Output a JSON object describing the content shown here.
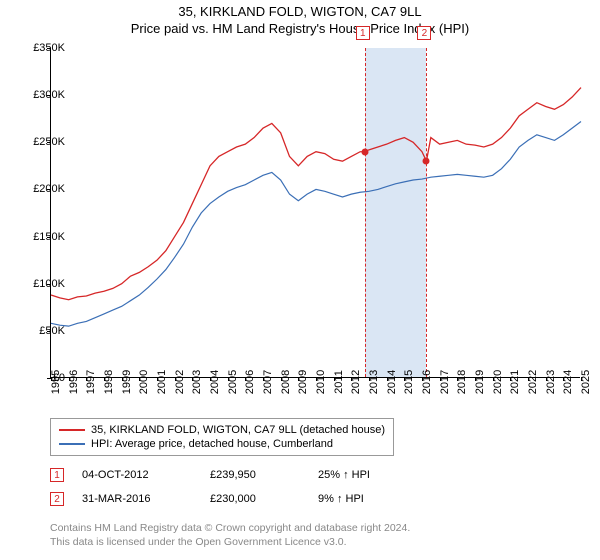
{
  "title": {
    "line1": "35, KIRKLAND FOLD, WIGTON, CA7 9LL",
    "line2": "Price paid vs. HM Land Registry's House Price Index (HPI)"
  },
  "chart": {
    "type": "line",
    "background_color": "#ffffff",
    "axis_color": "#000000",
    "ylim": [
      0,
      350000
    ],
    "ytick_step": 50000,
    "yticks": [
      "£0",
      "£50K",
      "£100K",
      "£150K",
      "£200K",
      "£250K",
      "£300K",
      "£350K"
    ],
    "xlim": [
      1995,
      2025
    ],
    "xticks": [
      1995,
      1996,
      1997,
      1998,
      1999,
      2000,
      2001,
      2002,
      2003,
      2004,
      2005,
      2006,
      2007,
      2008,
      2009,
      2010,
      2011,
      2012,
      2013,
      2014,
      2015,
      2016,
      2017,
      2018,
      2019,
      2020,
      2021,
      2022,
      2023,
      2024,
      2025
    ],
    "label_fontsize": 11,
    "shade_band": {
      "x_start": 2012.76,
      "x_end": 2016.25,
      "color": "rgba(173,200,230,0.45)"
    },
    "series": [
      {
        "name": "red",
        "color": "#d62728",
        "width": 1.3,
        "points": [
          [
            1995,
            88000
          ],
          [
            1995.5,
            85000
          ],
          [
            1996,
            83000
          ],
          [
            1996.5,
            86000
          ],
          [
            1997,
            87000
          ],
          [
            1997.5,
            90000
          ],
          [
            1998,
            92000
          ],
          [
            1998.5,
            95000
          ],
          [
            1999,
            100000
          ],
          [
            1999.5,
            108000
          ],
          [
            2000,
            112000
          ],
          [
            2000.5,
            118000
          ],
          [
            2001,
            125000
          ],
          [
            2001.5,
            135000
          ],
          [
            2002,
            150000
          ],
          [
            2002.5,
            165000
          ],
          [
            2003,
            185000
          ],
          [
            2003.5,
            205000
          ],
          [
            2004,
            225000
          ],
          [
            2004.5,
            235000
          ],
          [
            2005,
            240000
          ],
          [
            2005.5,
            245000
          ],
          [
            2006,
            248000
          ],
          [
            2006.5,
            255000
          ],
          [
            2007,
            265000
          ],
          [
            2007.5,
            270000
          ],
          [
            2008,
            260000
          ],
          [
            2008.5,
            235000
          ],
          [
            2009,
            225000
          ],
          [
            2009.5,
            235000
          ],
          [
            2010,
            240000
          ],
          [
            2010.5,
            238000
          ],
          [
            2011,
            232000
          ],
          [
            2011.5,
            230000
          ],
          [
            2012,
            235000
          ],
          [
            2012.5,
            240000
          ],
          [
            2012.76,
            239950
          ],
          [
            2013,
            242000
          ],
          [
            2013.5,
            245000
          ],
          [
            2014,
            248000
          ],
          [
            2014.5,
            252000
          ],
          [
            2015,
            255000
          ],
          [
            2015.5,
            250000
          ],
          [
            2016,
            240000
          ],
          [
            2016.25,
            230000
          ],
          [
            2016.5,
            255000
          ],
          [
            2017,
            248000
          ],
          [
            2017.5,
            250000
          ],
          [
            2018,
            252000
          ],
          [
            2018.5,
            248000
          ],
          [
            2019,
            247000
          ],
          [
            2019.5,
            245000
          ],
          [
            2020,
            248000
          ],
          [
            2020.5,
            255000
          ],
          [
            2021,
            265000
          ],
          [
            2021.5,
            278000
          ],
          [
            2022,
            285000
          ],
          [
            2022.5,
            292000
          ],
          [
            2023,
            288000
          ],
          [
            2023.5,
            285000
          ],
          [
            2024,
            290000
          ],
          [
            2024.5,
            298000
          ],
          [
            2025,
            308000
          ]
        ]
      },
      {
        "name": "blue",
        "color": "#3b6fb6",
        "width": 1.2,
        "points": [
          [
            1995,
            58000
          ],
          [
            1995.5,
            56000
          ],
          [
            1996,
            55000
          ],
          [
            1996.5,
            58000
          ],
          [
            1997,
            60000
          ],
          [
            1997.5,
            64000
          ],
          [
            1998,
            68000
          ],
          [
            1998.5,
            72000
          ],
          [
            1999,
            76000
          ],
          [
            1999.5,
            82000
          ],
          [
            2000,
            88000
          ],
          [
            2000.5,
            96000
          ],
          [
            2001,
            105000
          ],
          [
            2001.5,
            115000
          ],
          [
            2002,
            128000
          ],
          [
            2002.5,
            142000
          ],
          [
            2003,
            160000
          ],
          [
            2003.5,
            175000
          ],
          [
            2004,
            185000
          ],
          [
            2004.5,
            192000
          ],
          [
            2005,
            198000
          ],
          [
            2005.5,
            202000
          ],
          [
            2006,
            205000
          ],
          [
            2006.5,
            210000
          ],
          [
            2007,
            215000
          ],
          [
            2007.5,
            218000
          ],
          [
            2008,
            210000
          ],
          [
            2008.5,
            195000
          ],
          [
            2009,
            188000
          ],
          [
            2009.5,
            195000
          ],
          [
            2010,
            200000
          ],
          [
            2010.5,
            198000
          ],
          [
            2011,
            195000
          ],
          [
            2011.5,
            192000
          ],
          [
            2012,
            195000
          ],
          [
            2012.5,
            197000
          ],
          [
            2013,
            198000
          ],
          [
            2013.5,
            200000
          ],
          [
            2014,
            203000
          ],
          [
            2014.5,
            206000
          ],
          [
            2015,
            208000
          ],
          [
            2015.5,
            210000
          ],
          [
            2016,
            211000
          ],
          [
            2016.5,
            213000
          ],
          [
            2017,
            214000
          ],
          [
            2017.5,
            215000
          ],
          [
            2018,
            216000
          ],
          [
            2018.5,
            215000
          ],
          [
            2019,
            214000
          ],
          [
            2019.5,
            213000
          ],
          [
            2020,
            215000
          ],
          [
            2020.5,
            222000
          ],
          [
            2021,
            232000
          ],
          [
            2021.5,
            245000
          ],
          [
            2022,
            252000
          ],
          [
            2022.5,
            258000
          ],
          [
            2023,
            255000
          ],
          [
            2023.5,
            252000
          ],
          [
            2024,
            258000
          ],
          [
            2024.5,
            265000
          ],
          [
            2025,
            272000
          ]
        ]
      }
    ],
    "sale_markers": [
      {
        "n": "1",
        "x": 2012.76,
        "y": 239950,
        "color": "#d62728"
      },
      {
        "n": "2",
        "x": 2016.25,
        "y": 230000,
        "color": "#d62728"
      }
    ]
  },
  "legend": {
    "items": [
      {
        "color": "#d62728",
        "label": "35, KIRKLAND FOLD, WIGTON, CA7 9LL (detached house)"
      },
      {
        "color": "#3b6fb6",
        "label": "HPI: Average price, detached house, Cumberland"
      }
    ]
  },
  "sales": [
    {
      "n": "1",
      "color": "#d62728",
      "date": "04-OCT-2012",
      "price": "£239,950",
      "delta": "25% ↑ HPI"
    },
    {
      "n": "2",
      "color": "#d62728",
      "date": "31-MAR-2016",
      "price": "£230,000",
      "delta": "9% ↑ HPI"
    }
  ],
  "footnote": {
    "line1": "Contains HM Land Registry data © Crown copyright and database right 2024.",
    "line2": "This data is licensed under the Open Government Licence v3.0."
  }
}
